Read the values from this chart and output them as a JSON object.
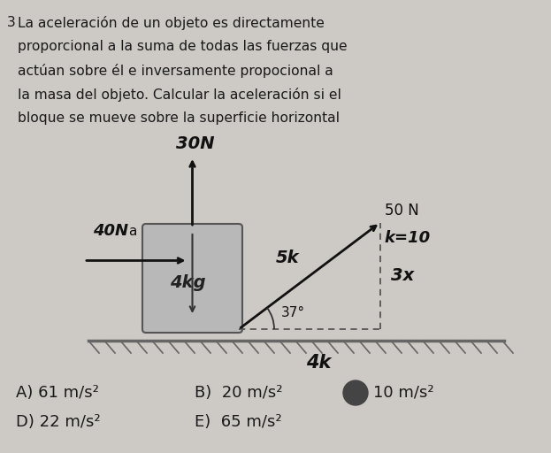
{
  "bg_color": "#cdc9c4",
  "text_color": "#1a1a1a",
  "problem_text_line1": "La aceleración de un objeto es directamente",
  "problem_text_line2": "proporcional a la suma de todas las fuerzas que",
  "problem_text_line3": "actúan sobre él e inversamente propocional a",
  "problem_text_line4": "la masa del objeto. Calcular la aceleración si el",
  "problem_text_line5": "bloque se mueve sobre la superficie horizontal",
  "problem_number": "3",
  "box_label": "4kg",
  "force_30N": "30N",
  "force_40N": "40N",
  "label_a": "a",
  "force_50N": "50 N",
  "label_k10": "k=10",
  "label_5k": "5k",
  "label_3x": "3x",
  "angle_label": "37°",
  "label_4k_bottom": "4k",
  "ans_A": "A) 61 m/s²",
  "ans_B": "B)  20 m/s²",
  "ans_C": "10 m/s²",
  "ans_D": "D) 22 m/s²",
  "ans_E": "E)  65 m/s²",
  "circle_color": "#444444"
}
